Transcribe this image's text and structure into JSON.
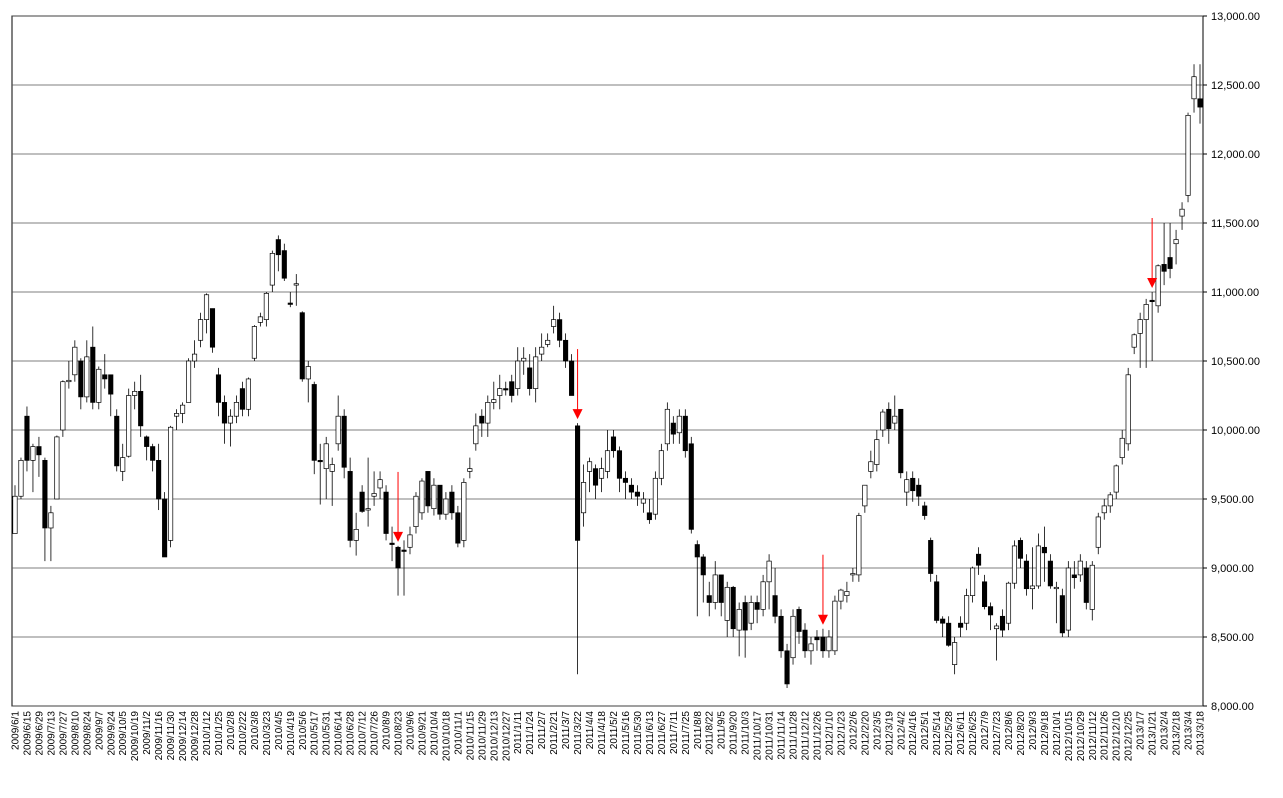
{
  "chart_data": {
    "type": "candlestick",
    "categories": [
      "2009/6/1",
      null,
      "2009/6/15",
      null,
      "2009/6/29",
      null,
      "2009/7/13",
      null,
      "2009/7/27",
      null,
      "2009/8/10",
      null,
      "2009/8/24",
      null,
      "2009/9/7",
      null,
      "2009/9/24",
      null,
      "2009/10/5",
      null,
      "2009/10/19",
      null,
      "2009/11/2",
      null,
      "2009/11/16",
      null,
      "2009/11/30",
      null,
      "2009/12/14",
      null,
      "2009/12/28",
      null,
      "2010/1/12",
      null,
      "2010/1/25",
      null,
      "2010/2/8",
      null,
      "2010/2/22",
      null,
      "2010/3/8",
      null,
      "2010/3/23",
      null,
      "2010/4/5",
      null,
      "2010/4/19",
      null,
      "2010/5/6",
      null,
      "2010/5/17",
      null,
      "2010/5/31",
      null,
      "2010/6/14",
      null,
      "2010/6/28",
      null,
      "2010/7/12",
      null,
      "2010/7/26",
      null,
      "2010/8/9",
      null,
      "2010/8/23",
      null,
      "2010/9/6",
      null,
      "2010/9/21",
      null,
      "2010/10/4",
      null,
      "2010/10/18",
      null,
      "2010/11/1",
      null,
      "2010/11/15",
      null,
      "2010/11/29",
      null,
      "2010/12/13",
      null,
      "2010/12/27",
      null,
      "2011/1/11",
      null,
      "2011/1/24",
      null,
      "2011/2/7",
      null,
      "2011/2/21",
      null,
      "2011/3/7",
      null,
      "2011/3/22",
      null,
      "2011/4/4",
      null,
      "2011/4/18",
      null,
      "2011/5/2",
      null,
      "2011/5/16",
      null,
      "2011/5/30",
      null,
      "2011/6/13",
      null,
      "2011/6/27",
      null,
      "2011/7/11",
      null,
      "2011/7/25",
      null,
      "2011/8/8",
      null,
      "2011/8/22",
      null,
      "2011/9/5",
      null,
      "2011/9/20",
      null,
      "2011/10/3",
      null,
      "2011/10/17",
      null,
      "2011/10/31",
      null,
      "2011/11/14",
      null,
      "2011/11/28",
      null,
      "2011/12/12",
      null,
      "2011/12/26",
      null,
      "2012/1/10",
      null,
      "2012/1/23",
      null,
      "2012/2/6",
      null,
      "2012/2/20",
      null,
      "2012/3/5",
      null,
      "2012/3/19",
      null,
      "2012/4/2",
      null,
      "2012/4/16",
      null,
      "2012/5/1",
      null,
      "2012/5/14",
      null,
      "2012/5/28",
      null,
      "2012/6/11",
      null,
      "2012/6/25",
      null,
      "2012/7/9",
      null,
      "2012/7/23",
      null,
      "2012/8/6",
      null,
      "2012/8/20",
      null,
      "2012/9/3",
      null,
      "2012/9/18",
      null,
      "2012/10/1",
      null,
      "2012/10/15",
      null,
      "2012/10/29",
      null,
      "2012/11/12",
      null,
      "2012/11/26",
      null,
      "2012/12/10",
      null,
      "2012/12/25",
      null,
      "2013/1/7",
      null,
      "2013/1/21",
      null,
      "2013/2/4",
      null,
      "2013/2/18",
      null,
      "2013/3/4",
      null,
      "2013/3/18"
    ],
    "open": [
      9250,
      9520,
      10100,
      9780,
      9880,
      9780,
      9290,
      9500,
      10000,
      10350,
      10400,
      10500,
      10240,
      10600,
      10200,
      10400,
      10400,
      10100,
      9700,
      9810,
      10250,
      10280,
      9950,
      9880,
      9780,
      9500,
      9200,
      10100,
      10120,
      10200,
      10500,
      10650,
      10800,
      10880,
      10400,
      10200,
      10050,
      10100,
      10300,
      10150,
      10520,
      10780,
      10800,
      11050,
      11380,
      11300,
      10920,
      11050,
      10850,
      10370,
      10330,
      9780,
      9720,
      9700,
      9900,
      10100,
      9700,
      9200,
      9550,
      9420,
      9520,
      9580,
      9550,
      9180,
      9150,
      9130,
      9150,
      9300,
      9400,
      9700,
      9430,
      9600,
      9390,
      9550,
      9400,
      9200,
      9700,
      9900,
      10100,
      10050,
      10200,
      10250,
      10300,
      10350,
      10300,
      10500,
      10450,
      10300,
      10550,
      10620,
      10750,
      10800,
      10650,
      10500,
      10030,
      9400,
      9700,
      9720,
      9650,
      9700,
      9950,
      9850,
      9650,
      9600,
      9550,
      9470,
      9400,
      9390,
      9650,
      9900,
      10050,
      9980,
      10100,
      9900,
      9170,
      9080,
      8800,
      8750,
      8950,
      8620,
      8860,
      8550,
      8750,
      8600,
      8750,
      8700,
      8900,
      8800,
      8650,
      8400,
      8350,
      8700,
      8550,
      8400,
      8500,
      8500,
      8400,
      8400,
      8760,
      8800,
      8950,
      8950,
      9450,
      9700,
      9750,
      10000,
      10150,
      10050,
      10150,
      9550,
      9650,
      9600,
      9450,
      9200,
      8900,
      8630,
      8600,
      8300,
      8600,
      8600,
      8800,
      9100,
      8900,
      8720,
      8560,
      8650,
      8600,
      8890,
      9200,
      9050,
      8850,
      8870,
      9150,
      9050,
      8850,
      8800,
      8550,
      8950,
      8950,
      9000,
      8700,
      9150,
      9400,
      9450,
      9550,
      9800,
      9900,
      10600,
      10700,
      10800,
      10940,
      10900,
      11200,
      11250,
      11350,
      11550,
      11700,
      12400,
      12400
    ],
    "high": [
      9600,
      9800,
      10170,
      9900,
      9950,
      9800,
      9450,
      9960,
      10360,
      10500,
      10650,
      10520,
      10650,
      10750,
      10460,
      10550,
      10400,
      10150,
      9900,
      10300,
      10350,
      10400,
      9960,
      9900,
      9900,
      9550,
      10030,
      10150,
      10200,
      10520,
      10650,
      10850,
      10990,
      10880,
      10450,
      10250,
      10150,
      10250,
      10350,
      10380,
      10760,
      10850,
      11000,
      11300,
      11410,
      11350,
      11000,
      11130,
      10860,
      10500,
      10350,
      9900,
      9950,
      9800,
      10250,
      10150,
      9800,
      9400,
      9600,
      9800,
      9700,
      9700,
      9600,
      9300,
      9160,
      9200,
      9300,
      9550,
      9650,
      9700,
      9650,
      9600,
      9550,
      9600,
      9450,
      9650,
      9800,
      10120,
      10150,
      10250,
      10350,
      10400,
      10350,
      10400,
      10600,
      10600,
      10550,
      10600,
      10700,
      10700,
      10900,
      10850,
      10700,
      10550,
      10050,
      9750,
      9800,
      9750,
      9800,
      10000,
      10000,
      9880,
      9700,
      9650,
      9600,
      9550,
      9500,
      9700,
      9900,
      10200,
      10100,
      10150,
      10150,
      9950,
      9200,
      9100,
      8900,
      9050,
      8950,
      8900,
      8870,
      8750,
      8800,
      8800,
      8800,
      8950,
      9100,
      9000,
      8700,
      8450,
      8700,
      8720,
      8600,
      8500,
      8550,
      8560,
      8550,
      8800,
      8850,
      8900,
      9000,
      9400,
      9600,
      9850,
      10000,
      10150,
      10200,
      10250,
      10150,
      9700,
      9700,
      9650,
      9480,
      9220,
      8950,
      8650,
      8650,
      8500,
      8650,
      8850,
      9010,
      9150,
      8950,
      8750,
      8600,
      8700,
      8900,
      9200,
      9220,
      9100,
      9150,
      9250,
      9300,
      9100,
      8900,
      8850,
      9050,
      9050,
      9100,
      9050,
      9050,
      9400,
      9500,
      9550,
      9750,
      10000,
      10450,
      10700,
      10850,
      10950,
      11000,
      11200,
      11500,
      11500,
      11450,
      11650,
      12300,
      12650,
      12650
    ],
    "low": [
      9250,
      9500,
      9700,
      9550,
      9660,
      9050,
      9050,
      9500,
      9950,
      10300,
      10350,
      10150,
      10200,
      10150,
      10150,
      10300,
      10100,
      9700,
      9630,
      9800,
      10150,
      9950,
      9780,
      9700,
      9420,
      9080,
      9150,
      10000,
      10050,
      10200,
      10450,
      10600,
      10700,
      10560,
      10100,
      9900,
      9880,
      10050,
      10100,
      10100,
      10500,
      10750,
      10750,
      11000,
      11150,
      11080,
      10890,
      10900,
      10350,
      10200,
      9680,
      9460,
      9500,
      9450,
      9850,
      9650,
      9150,
      9090,
      9400,
      9300,
      9450,
      9500,
      9200,
      9050,
      8800,
      8800,
      9100,
      9250,
      9350,
      9400,
      9380,
      9350,
      9350,
      9350,
      9150,
      9150,
      9650,
      9850,
      9950,
      9950,
      10150,
      10150,
      10250,
      10200,
      10250,
      10400,
      10250,
      10200,
      10500,
      10600,
      10700,
      10600,
      10450,
      10250,
      8230,
      9300,
      9550,
      9500,
      9550,
      9650,
      9800,
      9550,
      9500,
      9500,
      9450,
      9400,
      9320,
      9350,
      9600,
      9850,
      9900,
      9900,
      9800,
      9250,
      8650,
      8750,
      8650,
      8700,
      8650,
      8500,
      8500,
      8360,
      8350,
      8550,
      8600,
      8650,
      8700,
      8600,
      8350,
      8130,
      8300,
      8450,
      8350,
      8300,
      8400,
      8350,
      8350,
      8370,
      8700,
      8750,
      8900,
      8900,
      9400,
      9650,
      9700,
      9950,
      9900,
      10000,
      9650,
      9450,
      9480,
      9450,
      9350,
      8900,
      8600,
      8500,
      8430,
      8230,
      8500,
      8550,
      8750,
      8950,
      8700,
      8550,
      8330,
      8500,
      8550,
      8850,
      9000,
      8800,
      8700,
      8850,
      8900,
      8850,
      8600,
      8500,
      8500,
      8850,
      8900,
      8700,
      8620,
      9100,
      9350,
      9400,
      9500,
      9750,
      9850,
      10550,
      10450,
      10450,
      10500,
      10850,
      11050,
      11100,
      11200,
      11450,
      11650,
      12300,
      12220
    ],
    "close": [
      9520,
      9780,
      9780,
      9880,
      9820,
      9290,
      9400,
      9950,
      10350,
      10360,
      10600,
      10240,
      10530,
      10200,
      10440,
      10370,
      10260,
      9740,
      9800,
      10250,
      10280,
      10030,
      9880,
      9780,
      9500,
      9080,
      10020,
      10120,
      10180,
      10500,
      10550,
      10800,
      10980,
      10600,
      10200,
      10050,
      10100,
      10200,
      10150,
      10370,
      10750,
      10820,
      10990,
      11280,
      11270,
      11100,
      10910,
      11060,
      10370,
      10460,
      9780,
      9770,
      9900,
      9750,
      10100,
      9730,
      9200,
      9280,
      9410,
      9430,
      9540,
      9640,
      9250,
      9170,
      9000,
      9120,
      9240,
      9520,
      9630,
      9450,
      9600,
      9390,
      9500,
      9400,
      9180,
      9620,
      9720,
      10030,
      10050,
      10200,
      10220,
      10300,
      10290,
      10250,
      10500,
      10520,
      10300,
      10530,
      10600,
      10650,
      10800,
      10650,
      10500,
      10250,
      9200,
      9620,
      9770,
      9600,
      9720,
      9850,
      9850,
      9650,
      9620,
      9550,
      9520,
      9500,
      9350,
      9650,
      9850,
      10150,
      9970,
      10100,
      9850,
      9280,
      9080,
      8950,
      8750,
      8950,
      8750,
      8860,
      8560,
      8700,
      8550,
      8750,
      8700,
      8900,
      9050,
      8650,
      8400,
      8160,
      8650,
      8540,
      8400,
      8450,
      8480,
      8400,
      8500,
      8760,
      8840,
      8830,
      8960,
      9380,
      9600,
      9770,
      9930,
      10130,
      10010,
      10100,
      9690,
      9640,
      9560,
      9520,
      9380,
      8960,
      8620,
      8600,
      8440,
      8460,
      8570,
      8800,
      9000,
      9020,
      8720,
      8660,
      8580,
      8550,
      8890,
      9160,
      9070,
      8850,
      8870,
      9160,
      9110,
      8870,
      8860,
      8530,
      9000,
      8930,
      9050,
      8750,
      9020,
      9370,
      9450,
      9530,
      9740,
      9940,
      10400,
      10690,
      10800,
      10910,
      10930,
      11190,
      11150,
      11170,
      11380,
      11600,
      12280,
      12560,
      12340
    ],
    "ylim": [
      8000,
      13000
    ],
    "yticks": [
      {
        "value": 8000,
        "label": "8,000.00"
      },
      {
        "value": 8500,
        "label": "8,500.00"
      },
      {
        "value": 9000,
        "label": "9,000.00"
      },
      {
        "value": 9500,
        "label": "9,500.00"
      },
      {
        "value": 10000,
        "label": "10,000.00"
      },
      {
        "value": 10500,
        "label": "10,500.00"
      },
      {
        "value": 11000,
        "label": "11,000.00"
      },
      {
        "value": 11500,
        "label": "11,500.00"
      },
      {
        "value": 12000,
        "label": "12,000.00"
      },
      {
        "value": 12500,
        "label": "12,500.00"
      },
      {
        "value": 13000,
        "label": "13,000.00"
      }
    ],
    "grid": true,
    "up_color": "#ffffff",
    "down_color": "#000000",
    "signal_color": "#ff0000",
    "signals": [
      64,
      94,
      135,
      190
    ]
  }
}
